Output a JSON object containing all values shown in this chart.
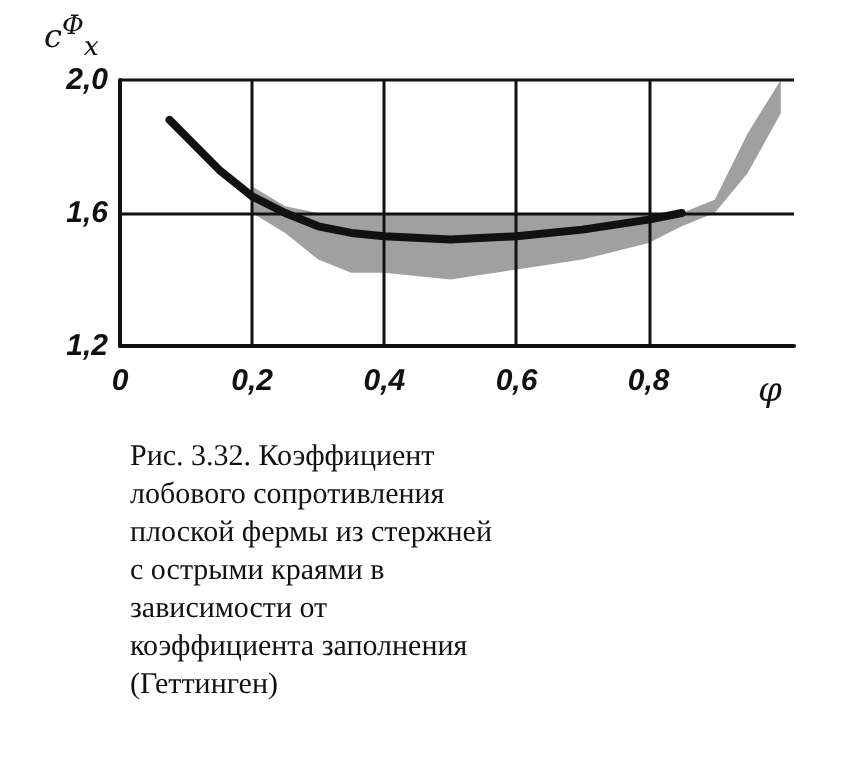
{
  "chart_data": {
    "type": "line",
    "title": "Рис. 3.32. Коэффициент лобового сопротивления плоской фермы из стержней с острыми краями в зависимости от коэффициента заполнения (Геттинген)",
    "xlabel": "φ",
    "ylabel": "c$^{Φ}$$_{x}$",
    "series": [
      {
        "color": "#111111",
        "x": [
          0.075,
          0.1,
          0.15,
          0.2,
          0.25,
          0.3,
          0.35,
          0.4,
          0.5,
          0.6,
          0.7,
          0.8,
          0.85,
          0.9,
          0.95,
          1.0
        ],
        "values": [
          1.88,
          1.83,
          1.73,
          1.65,
          1.6,
          1.56,
          1.54,
          1.53,
          1.52,
          1.53,
          1.55,
          1.58,
          1.6,
          null,
          null,
          null
        ],
        "lower": [
          null,
          null,
          null,
          1.6,
          1.54,
          1.46,
          1.42,
          1.42,
          1.4,
          1.43,
          1.46,
          1.51,
          1.56,
          1.6,
          1.72,
          1.9
        ],
        "upper": [
          null,
          null,
          null,
          1.68,
          1.62,
          1.6,
          1.6,
          1.6,
          1.6,
          1.6,
          1.6,
          1.6,
          1.6,
          1.64,
          1.84,
          2.0
        ]
      }
    ],
    "xlim": [
      0,
      1.02
    ],
    "xticks": [
      0,
      {
        "value": 0.2,
        "label": "0,2"
      },
      {
        "value": 0.4,
        "label": "0,4"
      },
      {
        "value": 0.6,
        "label": "0,6"
      },
      {
        "value": 0.8,
        "label": "0,8"
      }
    ],
    "ylim": [
      1.2,
      2.0
    ],
    "yticks": [
      {
        "value": 1.2,
        "label": "1,2"
      },
      {
        "value": 1.6,
        "label": "1,6"
      },
      {
        "value": 2.0,
        "label": "2,0"
      }
    ],
    "grid": true,
    "marker": "none",
    "line_style": "solid"
  }
}
